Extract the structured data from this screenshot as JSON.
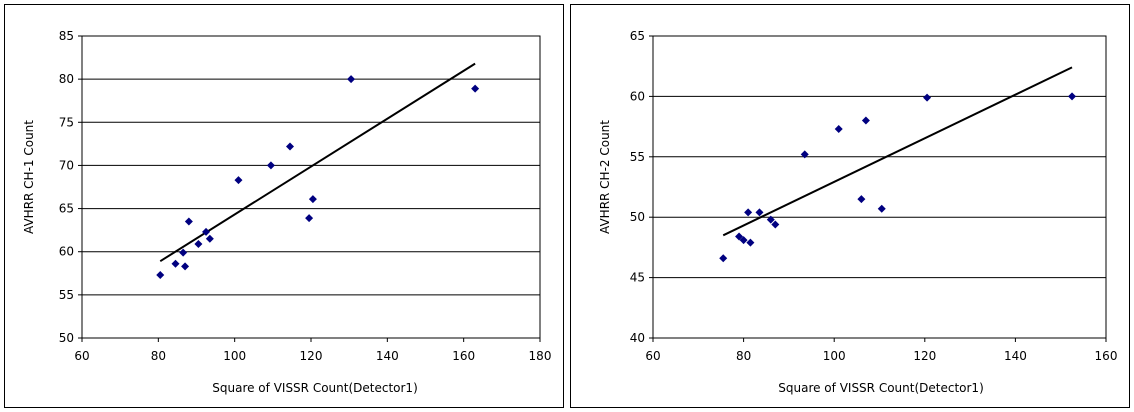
{
  "chart_data": [
    {
      "type": "scatter",
      "xlabel": "Square of VISSR Count(Detector1)",
      "ylabel": "AVHRR CH-1 Count",
      "xlim": [
        60,
        180
      ],
      "ylim": [
        50,
        85
      ],
      "xticks": [
        60,
        80,
        100,
        120,
        140,
        160,
        180
      ],
      "yticks": [
        50,
        55,
        60,
        65,
        70,
        75,
        80,
        85
      ],
      "grid": "horizontal",
      "point_color": "#000080",
      "line_color": "#000000",
      "points": [
        {
          "x": 80.5,
          "y": 57.3
        },
        {
          "x": 84.5,
          "y": 58.6
        },
        {
          "x": 86.5,
          "y": 59.9
        },
        {
          "x": 87.0,
          "y": 58.3
        },
        {
          "x": 88.0,
          "y": 63.5
        },
        {
          "x": 90.5,
          "y": 60.9
        },
        {
          "x": 92.5,
          "y": 62.3
        },
        {
          "x": 93.5,
          "y": 61.5
        },
        {
          "x": 101.0,
          "y": 68.3
        },
        {
          "x": 109.5,
          "y": 70.0
        },
        {
          "x": 114.5,
          "y": 72.2
        },
        {
          "x": 119.5,
          "y": 63.9
        },
        {
          "x": 120.5,
          "y": 66.1
        },
        {
          "x": 130.5,
          "y": 80.0
        },
        {
          "x": 163.0,
          "y": 78.9
        }
      ],
      "trendline": [
        {
          "x": 80.5,
          "y": 58.9
        },
        {
          "x": 163.0,
          "y": 81.8
        }
      ]
    },
    {
      "type": "scatter",
      "xlabel": "Square of VISSR Count(Detector1)",
      "ylabel": "AVHRR CH-2 Count",
      "xlim": [
        60,
        160
      ],
      "ylim": [
        40,
        65
      ],
      "xticks": [
        60,
        80,
        100,
        120,
        140,
        160
      ],
      "yticks": [
        40,
        45,
        50,
        55,
        60,
        65
      ],
      "grid": "horizontal",
      "point_color": "#000080",
      "line_color": "#000000",
      "points": [
        {
          "x": 75.5,
          "y": 46.6
        },
        {
          "x": 79.0,
          "y": 48.4
        },
        {
          "x": 80.0,
          "y": 48.1
        },
        {
          "x": 81.0,
          "y": 50.4
        },
        {
          "x": 81.5,
          "y": 47.9
        },
        {
          "x": 83.5,
          "y": 50.4
        },
        {
          "x": 86.0,
          "y": 49.8
        },
        {
          "x": 87.0,
          "y": 49.4
        },
        {
          "x": 93.5,
          "y": 55.2
        },
        {
          "x": 101.0,
          "y": 57.3
        },
        {
          "x": 106.0,
          "y": 51.5
        },
        {
          "x": 107.0,
          "y": 58.0
        },
        {
          "x": 110.5,
          "y": 50.7
        },
        {
          "x": 120.5,
          "y": 59.9
        },
        {
          "x": 152.5,
          "y": 60.0
        }
      ],
      "trendline": [
        {
          "x": 75.5,
          "y": 48.5
        },
        {
          "x": 152.5,
          "y": 62.4
        }
      ]
    }
  ]
}
